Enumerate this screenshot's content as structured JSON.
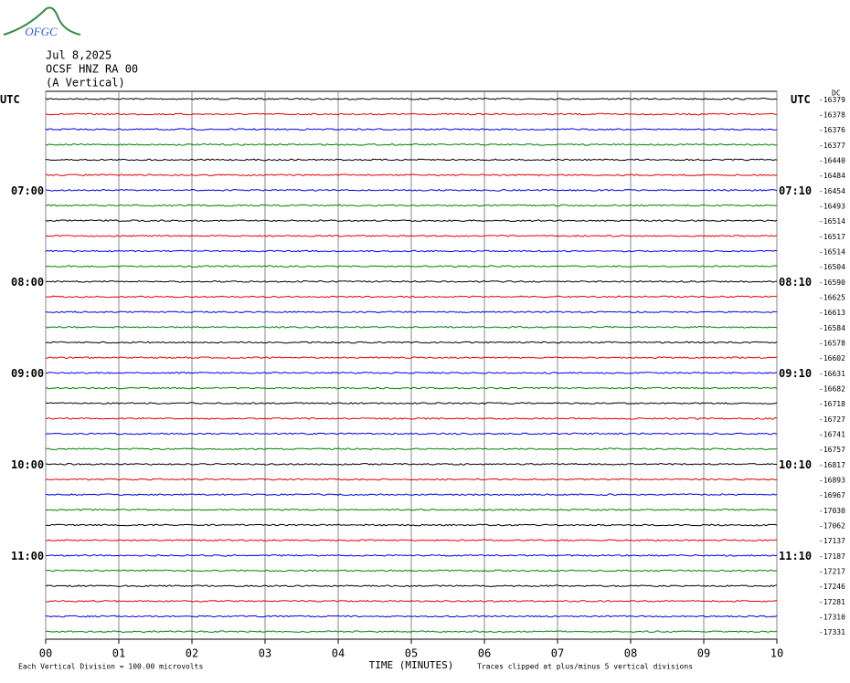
{
  "chart_data": {
    "type": "helicorder",
    "logo": "OFGC",
    "date": "Jul 8,2025",
    "station": "OCSF HNZ RA 00",
    "component": "(A Vertical)",
    "xlabel": "TIME (MINUTES)",
    "note_left": "Each Vertical Division =  100.00 microvolts",
    "note_right": "Traces clipped at plus/minus 5 vertical divisions",
    "dc_label": "DC",
    "xlim": [
      0,
      10
    ],
    "xticks": [
      {
        "value": 0,
        "label": "00"
      },
      {
        "value": 1,
        "label": "01"
      },
      {
        "value": 2,
        "label": "02"
      },
      {
        "value": 3,
        "label": "03"
      },
      {
        "value": 4,
        "label": "04"
      },
      {
        "value": 5,
        "label": "05"
      },
      {
        "value": 6,
        "label": "06"
      },
      {
        "value": 7,
        "label": "07"
      },
      {
        "value": 8,
        "label": "08"
      },
      {
        "value": 9,
        "label": "09"
      },
      {
        "value": 10,
        "label": "10"
      }
    ],
    "trace_colors": [
      "#000000",
      "#e00000",
      "#0000e0",
      "#008000"
    ],
    "left_labels": [
      "UTC",
      null,
      null,
      null,
      null,
      null,
      "07:00",
      null,
      null,
      null,
      null,
      null,
      "08:00",
      null,
      null,
      null,
      null,
      null,
      "09:00",
      null,
      null,
      null,
      null,
      null,
      "10:00",
      null,
      null,
      null,
      null,
      null,
      "11:00",
      null,
      null,
      null,
      null,
      null
    ],
    "right_labels": [
      "UTC",
      null,
      null,
      null,
      null,
      null,
      "07:10",
      null,
      null,
      null,
      null,
      null,
      "08:10",
      null,
      null,
      null,
      null,
      null,
      "09:10",
      null,
      null,
      null,
      null,
      null,
      "10:10",
      null,
      null,
      null,
      null,
      null,
      "11:10",
      null,
      null,
      null,
      null,
      null
    ],
    "trace_offsets": [
      -16379,
      -16378,
      -16376,
      -16377,
      -16440,
      -16484,
      -16454,
      -16493,
      -16514,
      -16517,
      -16514,
      -16504,
      -16590,
      -16625,
      -16613,
      -16584,
      -16578,
      -16602,
      -16631,
      -16682,
      -16718,
      -16727,
      -16741,
      -16757,
      -16817,
      -16893,
      -16967,
      -17030,
      -17062,
      -17137,
      -17187,
      -17217,
      -17246,
      -17281,
      -17310,
      -17331
    ]
  }
}
